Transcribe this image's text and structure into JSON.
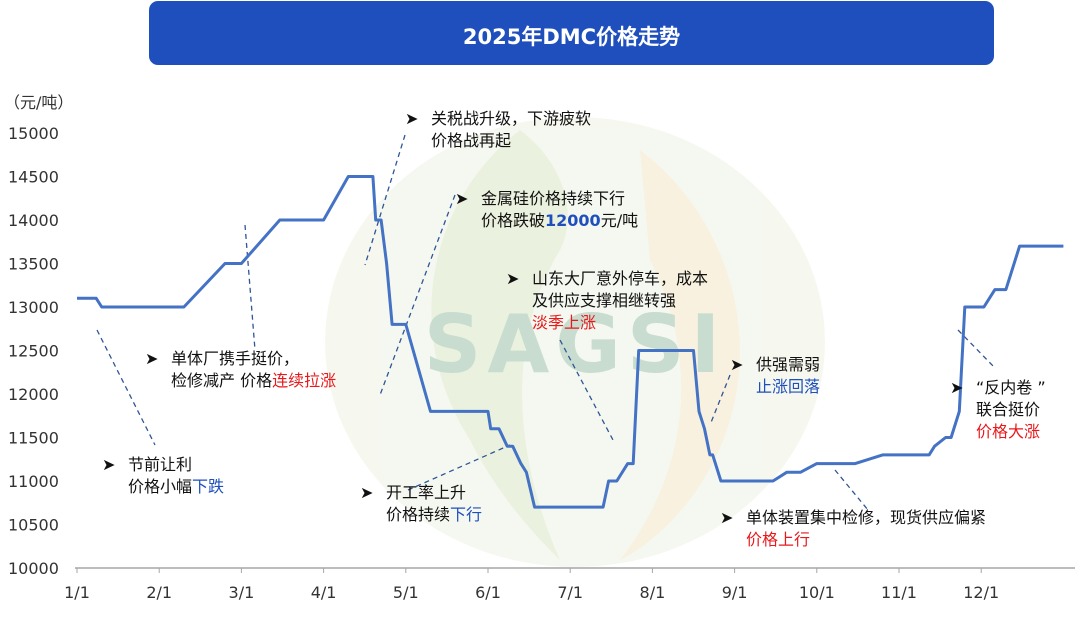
{
  "chart_data": {
    "type": "line",
    "title": "2025年DMC价格走势",
    "ylabel": "（元/吨）",
    "ylim": [
      10000,
      15000
    ],
    "yticks": [
      "15000",
      "14500",
      "14000",
      "13500",
      "13000",
      "12500",
      "12000",
      "11500",
      "11000",
      "10500",
      "10000"
    ],
    "xticks": [
      "1/1",
      "2/1",
      "3/1",
      "4/1",
      "5/1",
      "6/1",
      "7/1",
      "8/1",
      "9/1",
      "10/1",
      "11/1",
      "12/1"
    ],
    "grid": false,
    "colors": {
      "line": "#4472c4",
      "title_bg": "#1f4fbd",
      "highlight_red": "#e8191c",
      "highlight_blue": "#1f4fbd"
    },
    "series": [
      {
        "x": [
          "1/1",
          "1/8",
          "1/10",
          "2/1",
          "2/10",
          "2/25",
          "3/1",
          "3/15",
          "3/24",
          "4/1",
          "4/10",
          "4/13",
          "4/15",
          "4/17",
          "4/18",
          "4/19",
          "4/20",
          "4/22",
          "4/24",
          "4/26",
          "5/1",
          "5/10",
          "5/20",
          "5/31",
          "6/2",
          "6/5",
          "6/8",
          "6/10",
          "6/13",
          "6/15",
          "6/18",
          "6/22",
          "6/30",
          "7/1",
          "7/8",
          "7/13",
          "7/15",
          "7/18",
          "7/22",
          "7/24",
          "7/26",
          "8/1",
          "8/5",
          "8/10",
          "8/14",
          "8/16",
          "8/18",
          "8/20",
          "8/22",
          "8/23",
          "8/26",
          "8/28",
          "8/31",
          "9/10",
          "9/15",
          "9/20",
          "9/25",
          "10/1",
          "10/10",
          "10/15",
          "10/25",
          "11/1",
          "11/4",
          "11/6",
          "11/12",
          "11/14",
          "11/18",
          "11/20",
          "11/23",
          "11/25",
          "12/2",
          "12/6",
          "12/10",
          "12/15",
          "12/31"
        ],
        "values": [
          13100,
          13100,
          13000,
          13000,
          13000,
          13500,
          13500,
          14000,
          14000,
          14000,
          14500,
          14500,
          14500,
          14500,
          14500,
          14500,
          14000,
          14000,
          13500,
          12800,
          12800,
          11800,
          11800,
          11800,
          11600,
          11600,
          11400,
          11400,
          11200,
          11100,
          10700,
          10700,
          10700,
          10700,
          10700,
          10700,
          11000,
          11000,
          11200,
          11200,
          12500,
          12500,
          12500,
          12500,
          12500,
          12500,
          11800,
          11600,
          11300,
          11300,
          11000,
          11000,
          11000,
          11000,
          11000,
          11100,
          11100,
          11200,
          11200,
          11200,
          11300,
          11300,
          11300,
          11300,
          11300,
          11400,
          11500,
          11500,
          11800,
          13000,
          13000,
          13200,
          13200,
          13700,
          13700
        ]
      }
    ],
    "annotations": [
      {
        "lines": [
          [
            "节前让利"
          ],
          [
            "价格小幅",
            "下跌"
          ]
        ]
      },
      {
        "lines": [
          [
            "单体厂携手挺价，"
          ],
          [
            "检修减产  价格",
            "连续拉涨"
          ]
        ]
      },
      {
        "lines": [
          [
            "关税战升级，下游疲软"
          ],
          [
            "价格战再起"
          ]
        ]
      },
      {
        "lines": [
          [
            "金属硅价格持续下行"
          ],
          [
            "价格跌破",
            "12000",
            "元/吨"
          ]
        ]
      },
      {
        "lines": [
          [
            "开工率上升"
          ],
          [
            "价格持续",
            "下行"
          ]
        ]
      },
      {
        "lines": [
          [
            "山东大厂意外停车，成本"
          ],
          [
            "及供应支撑相继转强"
          ],
          [
            "淡季上涨"
          ]
        ]
      },
      {
        "lines": [
          [
            "供强需弱"
          ],
          [
            "止涨回落"
          ]
        ]
      },
      {
        "lines": [
          [
            "单体装置集中检修，现货供应偏紧"
          ],
          [
            "价格上行"
          ]
        ]
      },
      {
        "lines": [
          [
            "“反内卷 ”"
          ],
          [
            "联合挺价"
          ],
          [
            "价格大涨"
          ]
        ]
      }
    ],
    "watermark": "SAGSI",
    "bullet": "➤"
  }
}
